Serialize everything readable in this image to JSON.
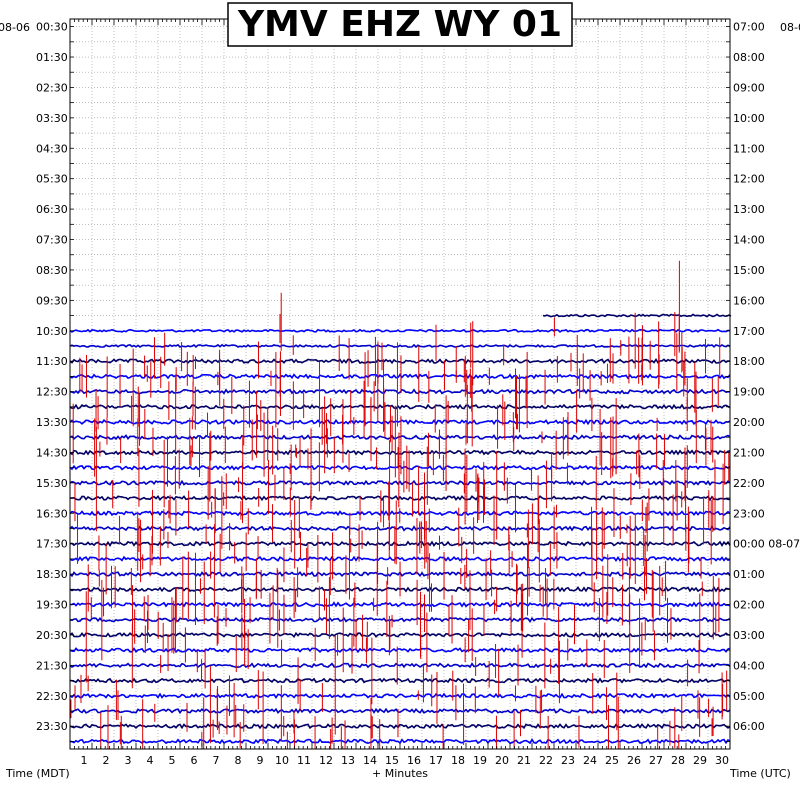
{
  "chart_data": {
    "type": "line",
    "title": "YMV EHZ WY 01",
    "xlabel": "+ Minutes",
    "left_axis_label": "Time (MDT)",
    "right_axis_label": "Time (UTC)",
    "left_date": "08-06",
    "right_date_top": "08-0",
    "right_date_mid": "08-07",
    "x_ticks": [
      "1",
      "2",
      "3",
      "4",
      "5",
      "6",
      "7",
      "8",
      "9",
      "10",
      "11",
      "12",
      "13",
      "14",
      "15",
      "16",
      "17",
      "18",
      "19",
      "20",
      "21",
      "22",
      "23",
      "24",
      "25",
      "26",
      "27",
      "28",
      "29",
      "30"
    ],
    "xlim": [
      0,
      30
    ],
    "left_labels": [
      "00:30",
      "01:30",
      "02:30",
      "03:30",
      "04:30",
      "05:30",
      "06:30",
      "07:30",
      "08:30",
      "09:30",
      "10:30",
      "11:30",
      "12:30",
      "13:30",
      "14:30",
      "15:30",
      "16:30",
      "17:30",
      "18:30",
      "19:30",
      "20:30",
      "21:30",
      "22:30",
      "23:30"
    ],
    "right_labels": [
      "07:00",
      "08:00",
      "09:00",
      "10:00",
      "11:00",
      "12:00",
      "13:00",
      "14:00",
      "15:00",
      "16:00",
      "17:00",
      "18:00",
      "19:00",
      "20:00",
      "21:00",
      "22:00",
      "23:00",
      "00:00 08-07",
      "01:00",
      "02:00",
      "03:00",
      "04:00",
      "05:00",
      "06:00"
    ],
    "trace_start_row": 20,
    "partial_row": {
      "row": 19,
      "start_minute": 21.5
    },
    "row_count": 48,
    "colors": [
      "#0000cc",
      "#000066",
      "#0000ff"
    ],
    "event_color": "#dd0000",
    "grid": true
  }
}
